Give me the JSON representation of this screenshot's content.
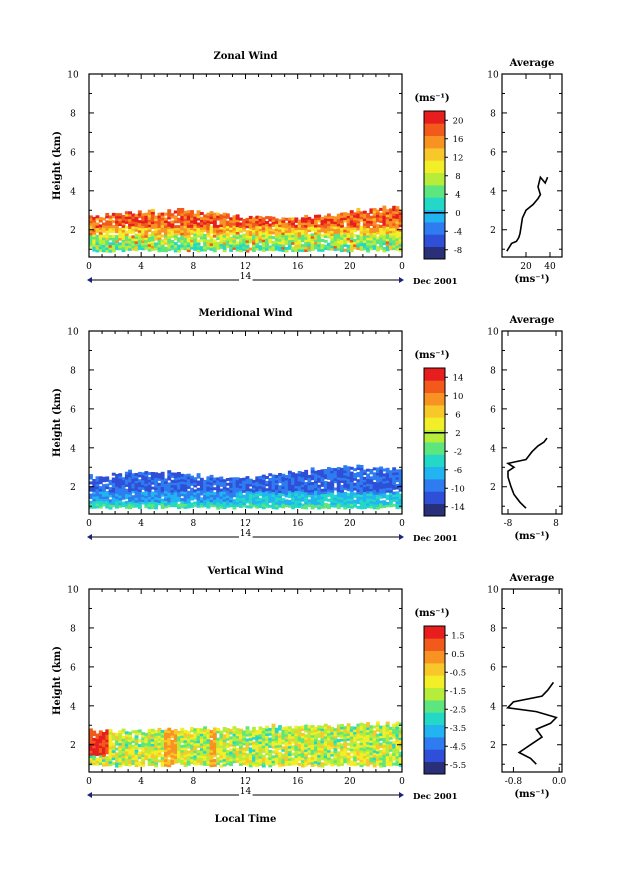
{
  "figure": {
    "xlabel": "Local Time",
    "time_ticks": [
      "0",
      "4",
      "8",
      "12",
      "16",
      "20",
      "0"
    ],
    "day_label": "14",
    "date_label": "Dec 2001",
    "ylabel": "Height (km)",
    "height_ticks": [
      "2",
      "4",
      "6",
      "8",
      "10"
    ],
    "average_title": "Average",
    "unit_label": "(ms⁻¹)"
  },
  "chart_data": [
    {
      "type": "heatmap",
      "id": "zonal",
      "title": "Zonal Wind",
      "xlim": [
        0,
        24
      ],
      "ylim": [
        0.6,
        10
      ],
      "colorbar": {
        "unit": "(ms⁻¹)",
        "ticks": [
          "20",
          "16",
          "12",
          "8",
          "4",
          "0",
          "-4",
          "-8"
        ],
        "range": [
          -10,
          22
        ]
      },
      "average": {
        "title": "Average",
        "xticks": [
          "20",
          "40"
        ],
        "xlim": [
          0,
          50
        ],
        "xlabel": "(ms⁻¹)",
        "profile": [
          [
            4,
            0.9
          ],
          [
            8,
            1.3
          ],
          [
            12,
            1.4
          ],
          [
            14,
            1.6
          ],
          [
            15,
            1.8
          ],
          [
            16,
            2.2
          ],
          [
            17,
            2.6
          ],
          [
            20,
            3.0
          ],
          [
            26,
            3.3
          ],
          [
            30,
            3.6
          ],
          [
            32,
            3.8
          ],
          [
            30,
            4.2
          ],
          [
            32,
            4.7
          ],
          [
            36,
            4.4
          ],
          [
            38,
            4.7
          ]
        ]
      }
    },
    {
      "type": "heatmap",
      "id": "meridional",
      "title": "Meridional Wind",
      "xlim": [
        0,
        24
      ],
      "ylim": [
        0.6,
        10
      ],
      "colorbar": {
        "unit": "(ms⁻¹)",
        "ticks": [
          "14",
          "10",
          "6",
          "2",
          "-2",
          "-6",
          "-10",
          "-14"
        ],
        "range": [
          -16,
          16
        ]
      },
      "average": {
        "title": "Average",
        "xticks": [
          "-8",
          "8"
        ],
        "xlim": [
          -10,
          10
        ],
        "xlabel": "(ms⁻¹)",
        "profile": [
          [
            -2,
            0.9
          ],
          [
            -4,
            1.2
          ],
          [
            -6,
            1.6
          ],
          [
            -7,
            2.0
          ],
          [
            -8,
            2.5
          ],
          [
            -8,
            2.8
          ],
          [
            -6,
            3.0
          ],
          [
            -8,
            3.2
          ],
          [
            -2,
            3.4
          ],
          [
            -1,
            3.6
          ],
          [
            0,
            3.8
          ],
          [
            2,
            4.1
          ],
          [
            4,
            4.3
          ],
          [
            5,
            4.5
          ]
        ]
      }
    },
    {
      "type": "heatmap",
      "id": "vertical",
      "title": "Vertical Wind",
      "xlim": [
        0,
        24
      ],
      "ylim": [
        0.6,
        10
      ],
      "colorbar": {
        "unit": "(ms⁻¹)",
        "ticks": [
          "1.5",
          "0.5",
          "-0.5",
          "-1.5",
          "-2.5",
          "-3.5",
          "-4.5",
          "-5.5"
        ],
        "range": [
          -6,
          2
        ]
      },
      "average": {
        "title": "Average",
        "xticks": [
          "-0.8",
          "0.0"
        ],
        "xlim": [
          -1.0,
          0.05
        ],
        "xlabel": "(ms⁻¹)",
        "profile": [
          [
            -0.4,
            1.0
          ],
          [
            -0.5,
            1.3
          ],
          [
            -0.7,
            1.6
          ],
          [
            -0.5,
            2.0
          ],
          [
            -0.3,
            2.4
          ],
          [
            -0.4,
            2.8
          ],
          [
            -0.15,
            3.1
          ],
          [
            -0.05,
            3.4
          ],
          [
            -0.4,
            3.7
          ],
          [
            -0.9,
            3.9
          ],
          [
            -0.8,
            4.2
          ],
          [
            -0.3,
            4.5
          ],
          [
            -0.2,
            4.8
          ],
          [
            -0.1,
            5.2
          ]
        ]
      }
    }
  ],
  "colors": {
    "cmap": [
      "#2a2f7a",
      "#2f4fd8",
      "#2f7cf0",
      "#22b4f0",
      "#24d8c8",
      "#5ee67e",
      "#b6ec3a",
      "#f2ee28",
      "#f8c82a",
      "#f89222",
      "#f25a1c",
      "#e81e1e"
    ]
  }
}
